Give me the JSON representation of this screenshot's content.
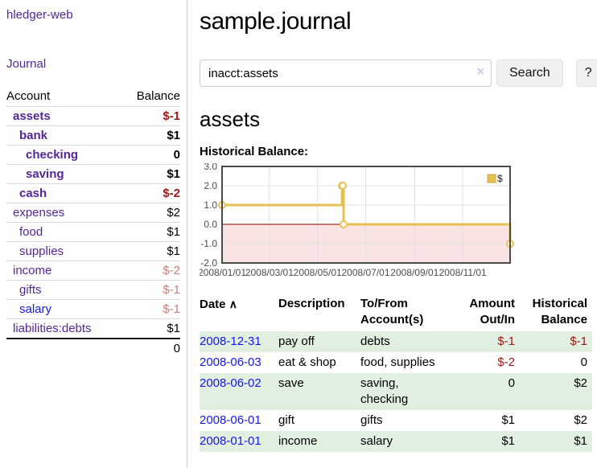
{
  "app": {
    "title": "hledger-web",
    "nav_journal": "Journal"
  },
  "colors": {
    "link_purple": "#54269c",
    "link_blue": "#1216ee",
    "negative_strong": "#9c1818",
    "negative_soft": "#c47e7e",
    "row_green": "#e1efe0",
    "chart_line": "#e6c150",
    "chart_negative_fill": "#fae3e3",
    "chart_zero_line": "#8b0000",
    "chart_border": "#4a4a4a"
  },
  "sidebar": {
    "accounts_header": {
      "account": "Account",
      "balance": "Balance"
    },
    "accounts": [
      {
        "name": "assets",
        "depth": 1,
        "balance": "$-1",
        "bold": true
      },
      {
        "name": "bank",
        "depth": 2,
        "balance": "$1",
        "bold": true
      },
      {
        "name": "checking",
        "depth": 3,
        "balance": "0",
        "bold": true
      },
      {
        "name": "saving",
        "depth": 3,
        "balance": "$1",
        "bold": true
      },
      {
        "name": "cash",
        "depth": 2,
        "balance": "$-2",
        "bold": true
      },
      {
        "name": "expenses",
        "depth": 1,
        "balance": "$2"
      },
      {
        "name": "food",
        "depth": 2,
        "balance": "$1"
      },
      {
        "name": "supplies",
        "depth": 2,
        "balance": "$1"
      },
      {
        "name": "income",
        "depth": 1,
        "balance": "$-2"
      },
      {
        "name": "gifts",
        "depth": 2,
        "balance": "$-1"
      },
      {
        "name": "salary",
        "depth": 2,
        "balance": "$-1",
        "blue": true
      },
      {
        "name": "liabilities:debts",
        "depth": 1,
        "balance": "$1"
      }
    ],
    "total": "0"
  },
  "header": {
    "title": "sample.journal"
  },
  "search": {
    "value": "inacct:assets",
    "clear_icon": "×",
    "button": "Search",
    "help_button": "?"
  },
  "account_page": {
    "title": "assets",
    "chart_label": "Historical Balance:"
  },
  "chart_data": {
    "type": "line",
    "step": true,
    "title": "Historical Balance:",
    "legend": [
      {
        "label": "$",
        "color": "#e6c150"
      }
    ],
    "legend_position": "top-right",
    "x_start": "2008-01-01",
    "x_end": "2008-12-31",
    "points": [
      {
        "date": "2008-01-01",
        "balance": 1
      },
      {
        "date": "2008-06-01",
        "balance": 2
      },
      {
        "date": "2008-06-02",
        "balance": 2
      },
      {
        "date": "2008-06-03",
        "balance": 0
      },
      {
        "date": "2008-12-31",
        "balance": -1
      }
    ],
    "ylim": [
      -2,
      3
    ],
    "yticks": [
      3.0,
      2.0,
      1.0,
      0.0,
      -1.0,
      -2.0
    ],
    "xticks": [
      "2008/01/01",
      "2008/03/01",
      "2008/05/01",
      "2008/07/01",
      "2008/09/01",
      "2008/11/01"
    ],
    "grid": true
  },
  "transactions": {
    "columns": [
      {
        "label": "Date",
        "sort_icon": "∧"
      },
      {
        "label": "Description"
      },
      {
        "label": "To/From Account(s)"
      },
      {
        "label": "Amount Out/In"
      },
      {
        "label": "Historical Balance"
      }
    ],
    "rows": [
      {
        "date": "2008-12-31",
        "description": "pay off",
        "accounts": "debts",
        "amount": "$-1",
        "balance": "$-1"
      },
      {
        "date": "2008-06-03",
        "description": "eat & shop",
        "accounts": "food, supplies",
        "amount": "$-2",
        "balance": "0"
      },
      {
        "date": "2008-06-02",
        "description": "save",
        "accounts": "saving,\nchecking",
        "amount": "0",
        "balance": "$2"
      },
      {
        "date": "2008-06-01",
        "description": "gift",
        "accounts": "gifts",
        "amount": "$1",
        "balance": "$2"
      },
      {
        "date": "2008-01-01",
        "description": "income",
        "accounts": "salary",
        "amount": "$1",
        "balance": "$1"
      }
    ]
  }
}
